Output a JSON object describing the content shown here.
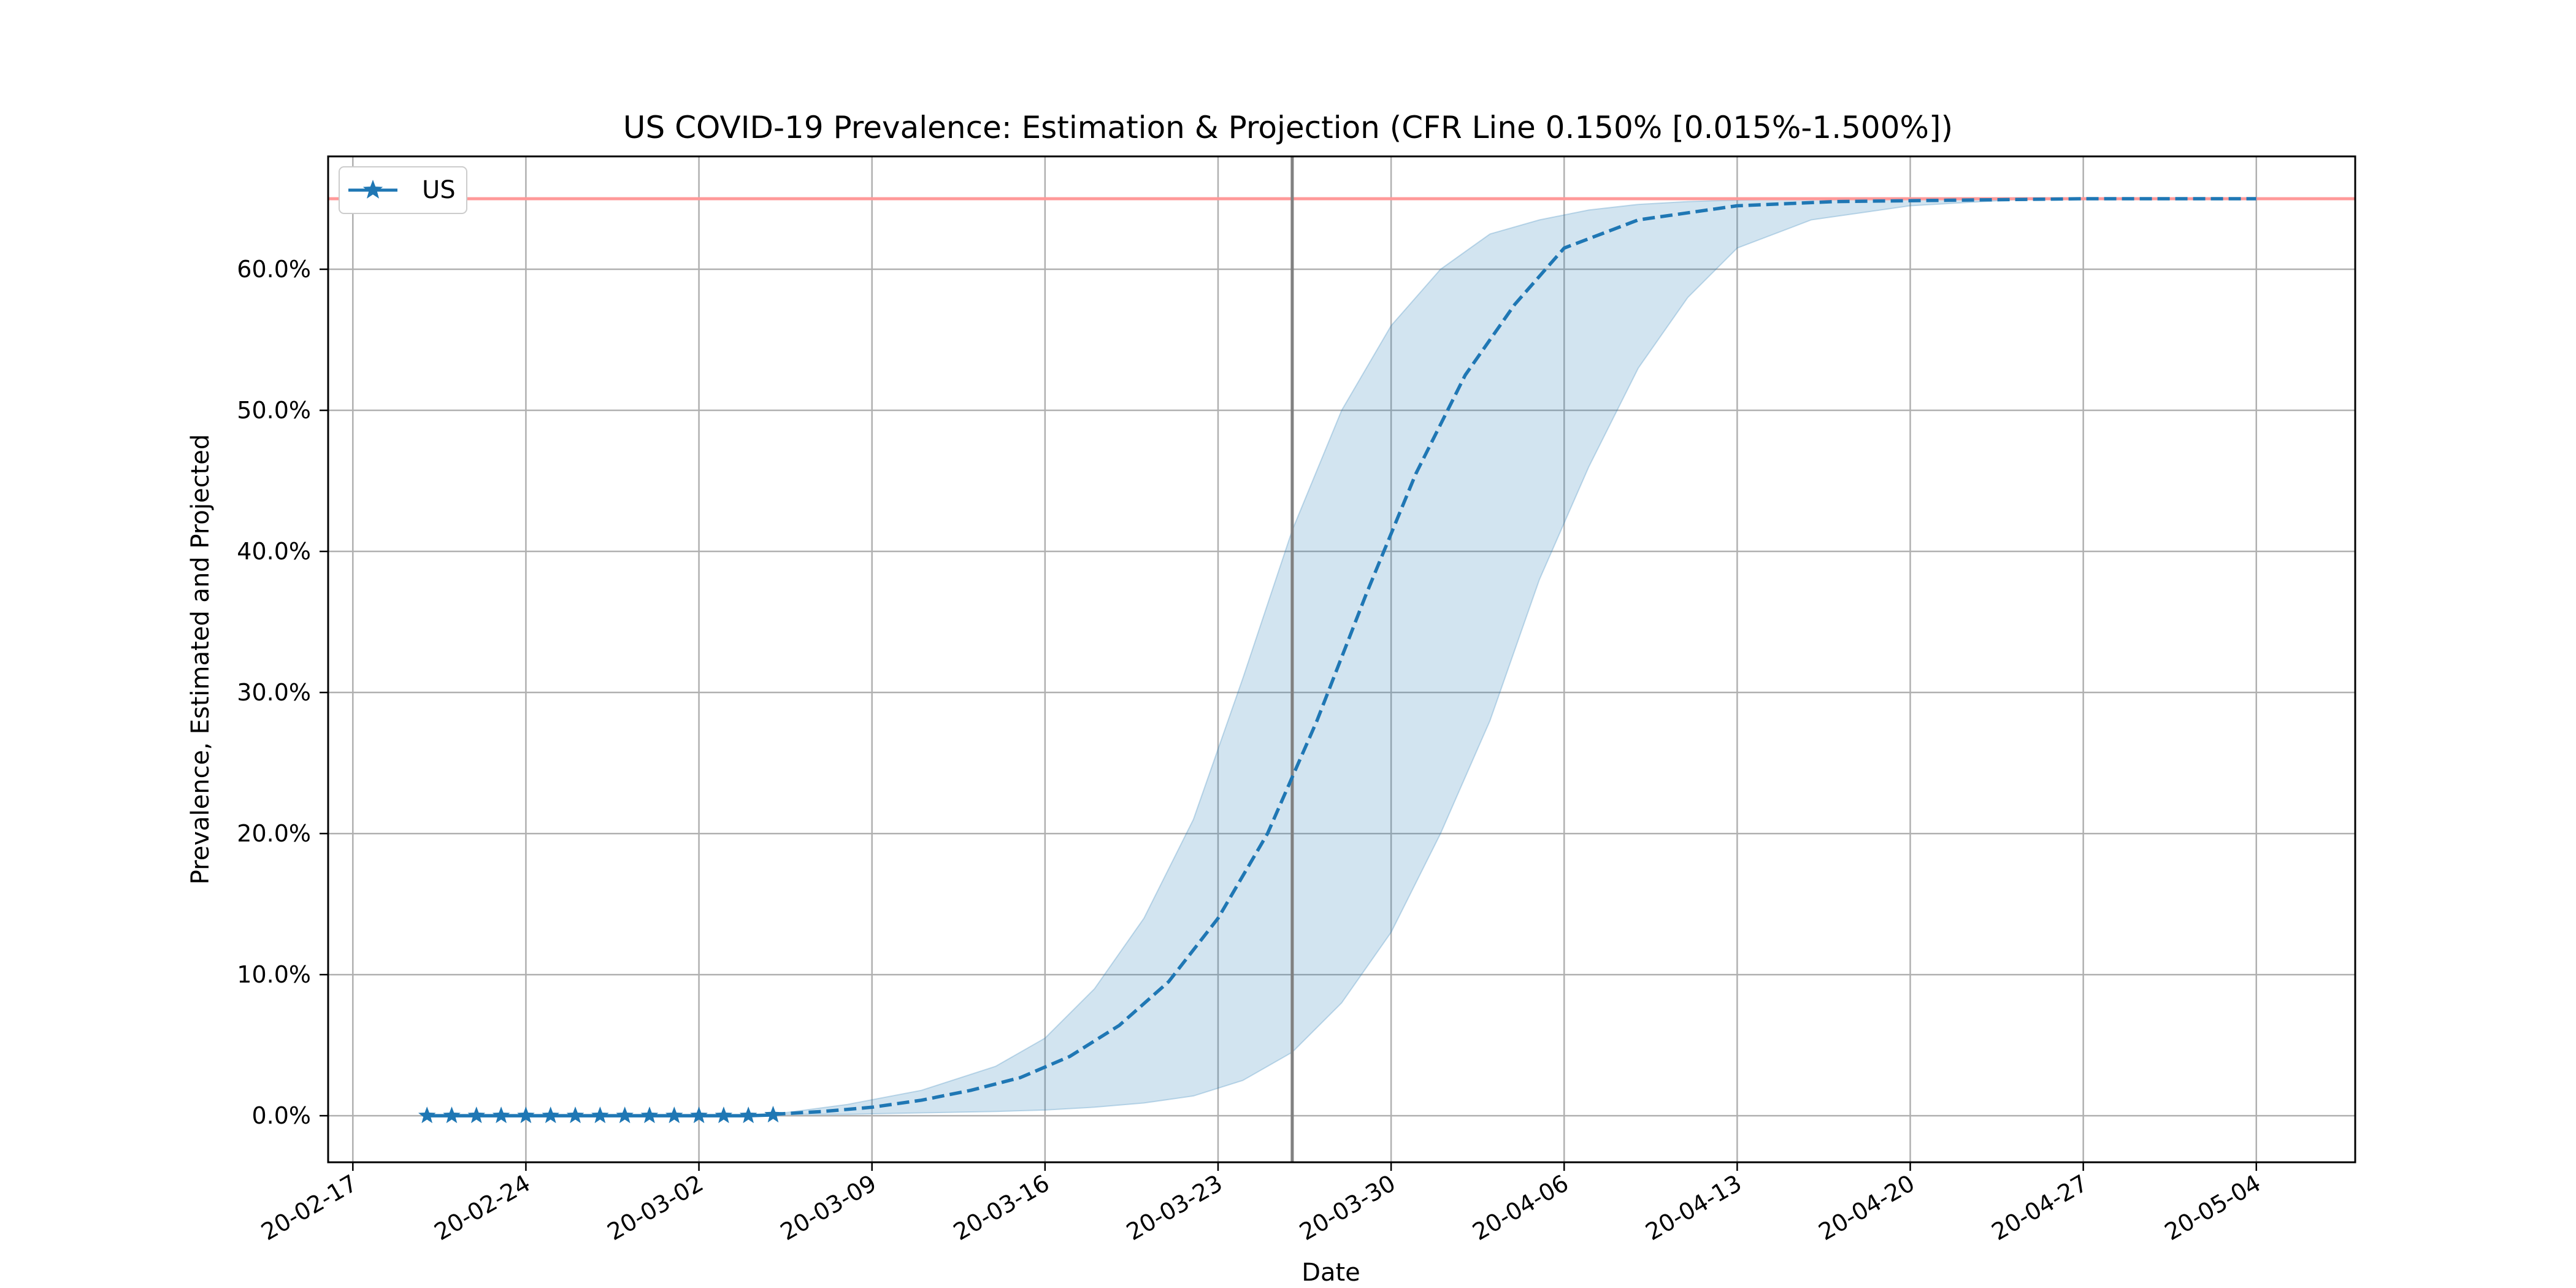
{
  "chart_data": {
    "type": "line",
    "title": "US COVID-19 Prevalence: Estimation & Projection (CFR Line 0.150% [0.015%-1.500%])",
    "xlabel": "Date",
    "ylabel": "Prevalence, Estimated and Projected",
    "xlim": [
      "2020-02-16",
      "2020-05-08"
    ],
    "ylim": [
      -3.3,
      68
    ],
    "grid": true,
    "legend_position": "top-left",
    "x_ticks": [
      "20-02-17",
      "20-02-24",
      "20-03-02",
      "20-03-09",
      "20-03-16",
      "20-03-23",
      "20-03-30",
      "20-04-06",
      "20-04-13",
      "20-04-20",
      "20-04-27",
      "20-05-04"
    ],
    "x_tick_dates": [
      "2020-02-17",
      "2020-02-24",
      "2020-03-02",
      "2020-03-09",
      "2020-03-16",
      "2020-03-23",
      "2020-03-30",
      "2020-04-06",
      "2020-04-13",
      "2020-04-20",
      "2020-04-27",
      "2020-05-04"
    ],
    "y_ticks": [
      0,
      10,
      20,
      30,
      40,
      50,
      60
    ],
    "y_tick_labels": [
      "0.0%",
      "10.0%",
      "20.0%",
      "30.0%",
      "40.0%",
      "50.0%",
      "60.0%"
    ],
    "capacity_line": {
      "y": 65,
      "color": "#ff9999"
    },
    "today_line": {
      "x": "2020-03-26",
      "color": "#808080"
    },
    "series": [
      {
        "name": "US",
        "style": "solid-star",
        "color": "#1f77b4",
        "x": [
          "2020-02-20",
          "2020-02-21",
          "2020-02-22",
          "2020-02-23",
          "2020-02-24",
          "2020-02-25",
          "2020-02-26",
          "2020-02-27",
          "2020-02-28",
          "2020-02-29",
          "2020-03-01",
          "2020-03-02",
          "2020-03-03",
          "2020-03-04",
          "2020-03-05"
        ],
        "values": [
          0,
          0,
          0,
          0,
          0,
          0,
          0,
          0,
          0,
          0,
          0,
          0,
          0,
          0,
          0.05
        ]
      },
      {
        "style": "dashed",
        "color": "#1f77b4",
        "x": [
          "2020-03-05",
          "2020-03-07",
          "2020-03-09",
          "2020-03-11",
          "2020-03-13",
          "2020-03-15",
          "2020-03-17",
          "2020-03-19",
          "2020-03-21",
          "2020-03-23",
          "2020-03-25",
          "2020-03-27",
          "2020-03-29",
          "2020-03-31",
          "2020-04-02",
          "2020-04-04",
          "2020-04-06",
          "2020-04-09",
          "2020-04-13",
          "2020-04-17",
          "2020-04-22",
          "2020-04-27",
          "2020-05-04"
        ],
        "values": [
          0.1,
          0.3,
          0.6,
          1.1,
          1.8,
          2.7,
          4.2,
          6.4,
          9.5,
          14,
          20,
          28,
          37,
          45.5,
          52.5,
          57.5,
          61.5,
          63.5,
          64.5,
          64.8,
          64.9,
          65,
          65
        ]
      }
    ],
    "band": {
      "color": "#1f77b4",
      "opacity": 0.2,
      "x": [
        "2020-03-05",
        "2020-03-08",
        "2020-03-11",
        "2020-03-14",
        "2020-03-16",
        "2020-03-18",
        "2020-03-20",
        "2020-03-22",
        "2020-03-24",
        "2020-03-26",
        "2020-03-28",
        "2020-03-30",
        "2020-04-01",
        "2020-04-03",
        "2020-04-05",
        "2020-04-07",
        "2020-04-09",
        "2020-04-11",
        "2020-04-13",
        "2020-04-16",
        "2020-04-20",
        "2020-04-25",
        "2020-05-04"
      ],
      "upper": [
        0.1,
        0.8,
        1.8,
        3.5,
        5.5,
        9,
        14,
        21,
        31,
        41.5,
        50,
        56,
        60,
        62.5,
        63.5,
        64.2,
        64.6,
        64.8,
        64.9,
        65,
        65,
        65,
        65
      ],
      "lower": [
        0.1,
        0.1,
        0.2,
        0.3,
        0.4,
        0.6,
        0.9,
        1.4,
        2.5,
        4.5,
        8,
        13,
        20,
        28,
        38,
        46,
        53,
        58,
        61.5,
        63.5,
        64.5,
        65,
        65
      ]
    }
  }
}
